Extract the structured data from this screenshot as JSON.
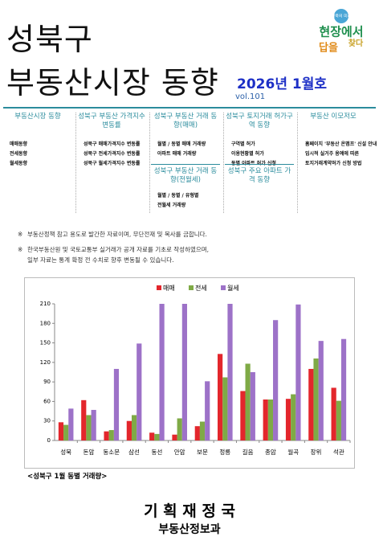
{
  "header": {
    "title_line1": "성북구",
    "title_line2": "부동산시장 동향",
    "issue": "2026년 1월호",
    "volume": "vol.101",
    "logo": {
      "top": "성북의 미래",
      "main": "현장에서",
      "sub1": "찾다",
      "sub2": "답을"
    }
  },
  "contents": [
    {
      "sections": [
        {
          "heading": "부동산시장 동향",
          "items": [
            "매매동향",
            "전세동향",
            "월세동향"
          ]
        }
      ]
    },
    {
      "sections": [
        {
          "heading": "성북구 부동산 가격지수 변동률",
          "items": [
            "성북구 매매가격지수 변동률",
            "성북구 전세가격지수 변동률",
            "성북구 월세가격지수 변동률"
          ]
        }
      ]
    },
    {
      "sections": [
        {
          "heading": "성북구 부동산 거래 동향(매매)",
          "items": [
            "월별 / 동별 매매 거래량",
            "아파트 매매 거래량"
          ]
        },
        {
          "heading": "성북구 부동산 거래 동향(전월세)",
          "items": [
            "월별 / 동별 / 유형별",
            "전월세 거래량"
          ]
        }
      ]
    },
    {
      "sections": [
        {
          "heading": "성북구 토지거래 허가구역 동향",
          "items": [
            "구역별 허가",
            "이용현황별 허가",
            "동별 아파트 허가 신청"
          ]
        },
        {
          "heading": "성북구 주요 아파트 가격 동향",
          "items": []
        }
      ]
    },
    {
      "sections": [
        {
          "heading": "부동산 이모저모",
          "items": [
            "홈페이지 '부동산 온맵프' 신설 안내",
            "임시적 실거주 용예에 따른",
            "토지거래계약허가 신청 방법"
          ]
        }
      ]
    }
  ],
  "notes": [
    {
      "mark": "※",
      "lines": [
        "부동산정책 참고 용도로 발간한 자료이며, 무단전재 및 복사를 금합니다."
      ]
    },
    {
      "mark": "※",
      "lines": [
        "한국부동산원 및 국토교통부 실거래가 공개 자료를 기초로 작성하였으며,",
        "일부 자료는 통계 확정 전 수치로 향후 변동될 수 있습니다."
      ]
    }
  ],
  "chart_data": {
    "type": "bar",
    "caption": "<성북구 1월 동별 거래량>",
    "categories": [
      "성북",
      "돈암",
      "동소문",
      "삼선",
      "동선",
      "안암",
      "보문",
      "정릉",
      "길음",
      "종암",
      "월곡",
      "장위",
      "석관"
    ],
    "series": [
      {
        "name": "매매",
        "color": "#e3262c",
        "values": [
          28,
          62,
          14,
          30,
          12,
          9,
          22,
          133,
          76,
          63,
          64,
          110,
          81
        ]
      },
      {
        "name": "전세",
        "color": "#7faa46",
        "values": [
          24,
          39,
          16,
          39,
          10,
          34,
          29,
          97,
          118,
          63,
          71,
          126,
          61
        ]
      },
      {
        "name": "월세",
        "color": "#9d72c8",
        "values": [
          49,
          47,
          110,
          149,
          210,
          210,
          91,
          210,
          105,
          185,
          209,
          153,
          156
        ]
      }
    ],
    "ylim": [
      0,
      210
    ],
    "yticks": [
      0,
      30,
      60,
      90,
      120,
      150,
      180,
      210
    ],
    "grid": false
  },
  "footer": {
    "department": "기 획 재 정 국",
    "division": "부동산정보과"
  }
}
